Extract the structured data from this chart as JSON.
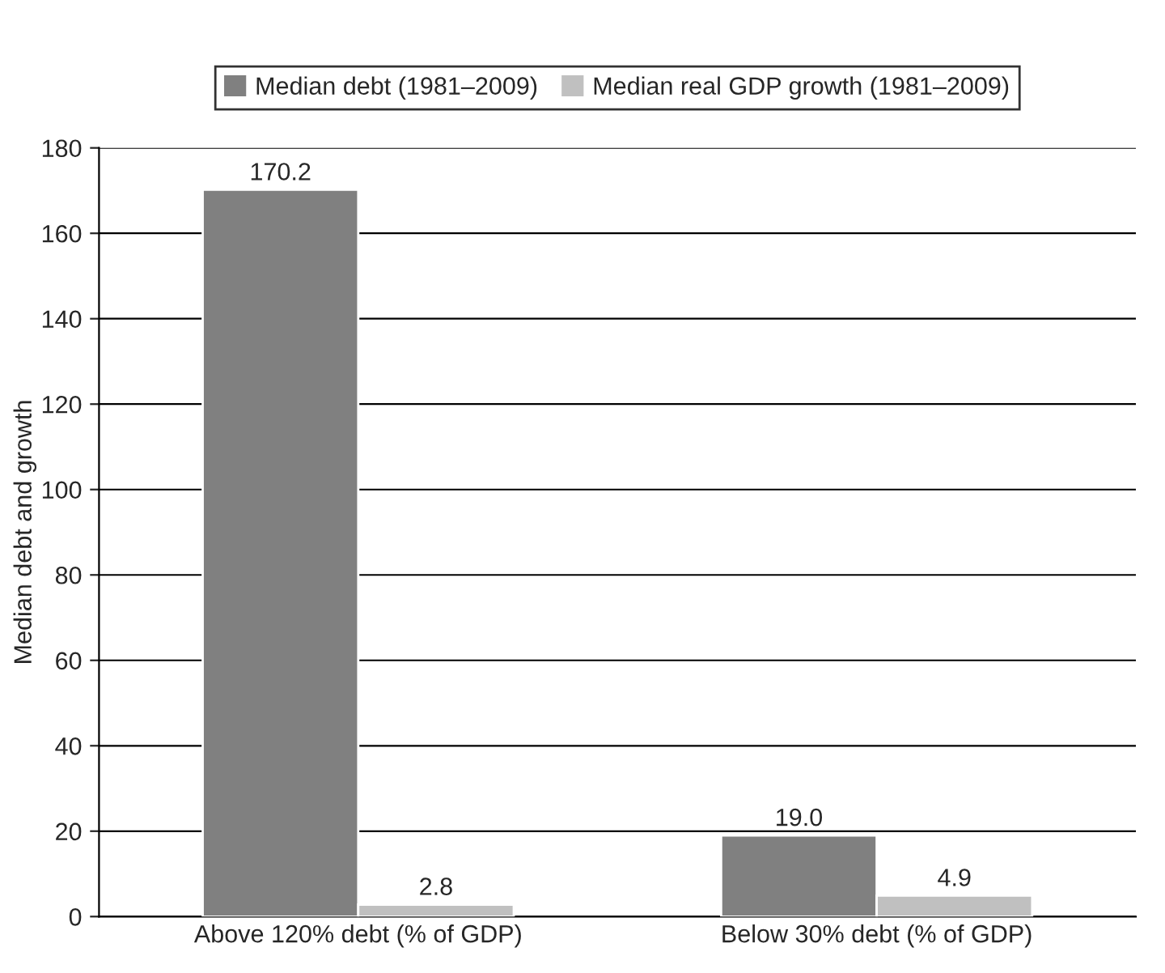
{
  "chart_data": {
    "type": "bar",
    "ylabel": "Median debt and growth",
    "categories": [
      "Above 120% debt (% of GDP)",
      "Below 30% debt (% of GDP)"
    ],
    "series": [
      {
        "name": "Median debt (1981–2009)",
        "color": "#808080",
        "values": [
          170.2,
          19.0
        ],
        "value_labels": [
          "170.2",
          "19.0"
        ]
      },
      {
        "name": "Median real GDP growth (1981–2009)",
        "color": "#c0c0c0",
        "values": [
          2.8,
          4.9
        ],
        "value_labels": [
          "2.8",
          "4.9"
        ]
      }
    ],
    "ylim": [
      0,
      180
    ],
    "yticks": [
      0,
      20,
      40,
      60,
      80,
      100,
      120,
      140,
      160,
      180
    ],
    "grid": "y",
    "legend": "top"
  }
}
